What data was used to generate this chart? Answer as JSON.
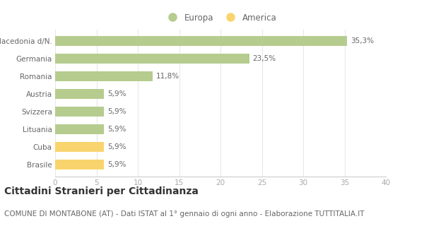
{
  "categories": [
    "Brasile",
    "Cuba",
    "Lituania",
    "Svizzera",
    "Austria",
    "Romania",
    "Germania",
    "Macedonia d/N."
  ],
  "values": [
    5.9,
    5.9,
    5.9,
    5.9,
    5.9,
    11.8,
    23.5,
    35.3
  ],
  "colors": [
    "#f9d46e",
    "#f9d46e",
    "#b5cc8e",
    "#b5cc8e",
    "#b5cc8e",
    "#b5cc8e",
    "#b5cc8e",
    "#b5cc8e"
  ],
  "labels": [
    "5,9%",
    "5,9%",
    "5,9%",
    "5,9%",
    "5,9%",
    "11,8%",
    "23,5%",
    "35,3%"
  ],
  "europa_color": "#b5cc8e",
  "america_color": "#f9d46e",
  "title": "Cittadini Stranieri per Cittadinanza",
  "subtitle": "COMUNE DI MONTABONE (AT) - Dati ISTAT al 1° gennaio di ogni anno - Elaborazione TUTTITALIA.IT",
  "xlim": [
    0,
    40
  ],
  "xticks": [
    0,
    5,
    10,
    15,
    20,
    25,
    30,
    35,
    40
  ],
  "legend_europa": "Europa",
  "legend_america": "America",
  "bar_height": 0.55,
  "title_fontsize": 10,
  "subtitle_fontsize": 7.5,
  "label_fontsize": 7.5,
  "tick_fontsize": 7.5,
  "legend_fontsize": 8.5
}
